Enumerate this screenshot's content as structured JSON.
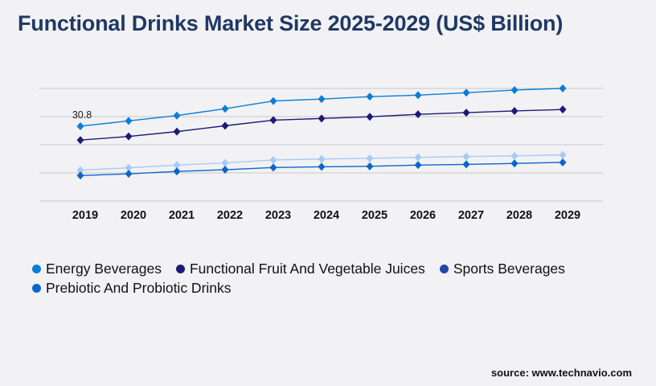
{
  "title": "Functional Drinks Market Size 2025-2029 (US$ Billion)",
  "source": "source: www.technavio.com",
  "chart_data": {
    "type": "line",
    "title": "Functional Drinks Market Size 2025-2029 (US$ Billion)",
    "xlabel": "",
    "ylabel": "",
    "grid": true,
    "legend_position": "bottom",
    "ylim": [
      0,
      58
    ],
    "categories": [
      "2019",
      "2020",
      "2021",
      "2022",
      "2023",
      "2024",
      "2025",
      "2026",
      "2027",
      "2028",
      "2029"
    ],
    "series": [
      {
        "name": "Energy Beverages",
        "color": "#0b7dd6",
        "legend_color": "#0b7dd6",
        "values": [
          30.8,
          33.0,
          35.2,
          38.0,
          41.2,
          42.0,
          43.0,
          43.6,
          44.6,
          45.7,
          46.4
        ]
      },
      {
        "name": "Functional Fruit And Vegetable Juices",
        "color": "#1c1a78",
        "legend_color": "#1c1a78",
        "values": [
          25.1,
          26.6,
          28.6,
          31.0,
          33.3,
          34.0,
          34.7,
          35.7,
          36.4,
          37.1,
          37.7
        ]
      },
      {
        "name": "Sports Beverages",
        "color": "#a9c9f7",
        "legend_color": "#1e4aa8",
        "values": [
          12.7,
          13.7,
          14.8,
          15.7,
          16.9,
          17.3,
          17.6,
          18.0,
          18.3,
          18.6,
          19.0
        ]
      },
      {
        "name": "Prebiotic And Probiotic Drinks",
        "color": "#0a66cc",
        "legend_color": "#0a66cc",
        "values": [
          10.5,
          11.2,
          12.2,
          12.9,
          13.8,
          14.1,
          14.3,
          14.8,
          15.1,
          15.5,
          15.9
        ]
      }
    ],
    "annotations": [
      {
        "series": "Energy Beverages",
        "category": "2019",
        "text": "30.8"
      }
    ]
  }
}
